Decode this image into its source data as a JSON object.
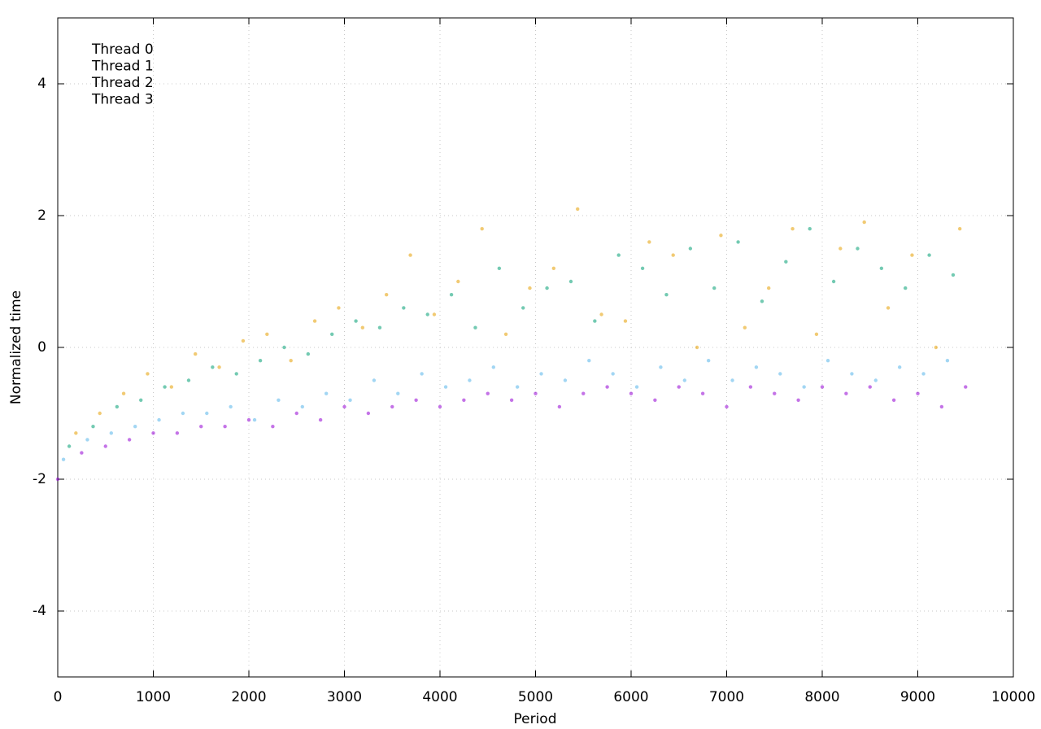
{
  "chart_data": {
    "type": "scatter",
    "xlabel": "Period",
    "ylabel": "Normalized time",
    "xlim": [
      0,
      10000
    ],
    "ylim": [
      -5,
      5
    ],
    "xticks": [
      0,
      1000,
      2000,
      3000,
      4000,
      5000,
      6000,
      7000,
      8000,
      9000,
      10000
    ],
    "yticks": [
      -4,
      -2,
      0,
      2,
      4
    ],
    "grid": true,
    "legend": "upper left",
    "series": [
      {
        "name": "Thread 0",
        "color": "#9400d3",
        "x": [
          0,
          250,
          500,
          750,
          1000,
          1250,
          1500,
          1750,
          2000,
          2250,
          2500,
          2750,
          3000,
          3250,
          3500,
          3750,
          4000,
          4250,
          4500,
          4750,
          5000,
          5250,
          5500,
          5750,
          6000,
          6250,
          6500,
          6750,
          7000,
          7250,
          7500,
          7750,
          8000,
          8250,
          8500,
          8750,
          9000,
          9250,
          9500
        ],
        "values": [
          -2.0,
          -1.6,
          -1.5,
          -1.4,
          -1.3,
          -1.3,
          -1.2,
          -1.2,
          -1.1,
          -1.2,
          -1.0,
          -1.1,
          -0.9,
          -1.0,
          -0.9,
          -0.8,
          -0.9,
          -0.8,
          -0.7,
          -0.8,
          -0.7,
          -0.9,
          -0.7,
          -0.6,
          -0.7,
          -0.8,
          -0.6,
          -0.7,
          -0.9,
          -0.6,
          -0.7,
          -0.8,
          -0.6,
          -0.7,
          -0.6,
          -0.8,
          -0.7,
          -0.9,
          -0.6
        ]
      },
      {
        "name": "Thread 1",
        "color": "#009e73",
        "x": [
          120,
          370,
          620,
          870,
          1120,
          1370,
          1620,
          1870,
          2120,
          2370,
          2620,
          2870,
          3120,
          3370,
          3620,
          3870,
          4120,
          4370,
          4620,
          4870,
          5120,
          5370,
          5620,
          5870,
          6120,
          6370,
          6620,
          6870,
          7120,
          7370,
          7620,
          7870,
          8120,
          8370,
          8620,
          8870,
          9120,
          9370
        ],
        "values": [
          -1.5,
          -1.2,
          -0.9,
          -0.8,
          -0.6,
          -0.5,
          -0.3,
          -0.4,
          -0.2,
          0.0,
          -0.1,
          0.2,
          0.4,
          0.3,
          0.6,
          0.5,
          0.8,
          0.3,
          1.2,
          0.6,
          0.9,
          1.0,
          0.4,
          1.4,
          1.2,
          0.8,
          1.5,
          0.9,
          1.6,
          0.7,
          1.3,
          1.8,
          1.0,
          1.5,
          1.2,
          0.9,
          1.4,
          1.1
        ]
      },
      {
        "name": "Thread 2",
        "color": "#56b4e9",
        "x": [
          60,
          310,
          560,
          810,
          1060,
          1310,
          1560,
          1810,
          2060,
          2310,
          2560,
          2810,
          3060,
          3310,
          3560,
          3810,
          4060,
          4310,
          4560,
          4810,
          5060,
          5310,
          5560,
          5810,
          6060,
          6310,
          6560,
          6810,
          7060,
          7310,
          7560,
          7810,
          8060,
          8310,
          8560,
          8810,
          9060,
          9310
        ],
        "values": [
          -1.7,
          -1.4,
          -1.3,
          -1.2,
          -1.1,
          -1.0,
          -1.0,
          -0.9,
          -1.1,
          -0.8,
          -0.9,
          -0.7,
          -0.8,
          -0.5,
          -0.7,
          -0.4,
          -0.6,
          -0.5,
          -0.3,
          -0.6,
          -0.4,
          -0.5,
          -0.2,
          -0.4,
          -0.6,
          -0.3,
          -0.5,
          -0.2,
          -0.5,
          -0.3,
          -0.4,
          -0.6,
          -0.2,
          -0.4,
          -0.5,
          -0.3,
          -0.4,
          -0.2
        ]
      },
      {
        "name": "Thread 3",
        "color": "#e69f00",
        "x": [
          190,
          440,
          690,
          940,
          1190,
          1440,
          1690,
          1940,
          2190,
          2440,
          2690,
          2940,
          3190,
          3440,
          3690,
          3940,
          4190,
          4440,
          4690,
          4940,
          5190,
          5440,
          5690,
          5940,
          6190,
          6440,
          6690,
          6940,
          7190,
          7440,
          7690,
          7940,
          8190,
          8440,
          8690,
          8940,
          9190,
          9440
        ],
        "values": [
          -1.3,
          -1.0,
          -0.7,
          -0.4,
          -0.6,
          -0.1,
          -0.3,
          0.1,
          0.2,
          -0.2,
          0.4,
          0.6,
          0.3,
          0.8,
          1.4,
          0.5,
          1.0,
          1.8,
          0.2,
          0.9,
          1.2,
          2.1,
          0.5,
          0.4,
          1.6,
          1.4,
          0.0,
          1.7,
          0.3,
          0.9,
          1.8,
          0.2,
          1.5,
          1.9,
          0.6,
          1.4,
          0.0,
          1.8
        ]
      }
    ]
  }
}
